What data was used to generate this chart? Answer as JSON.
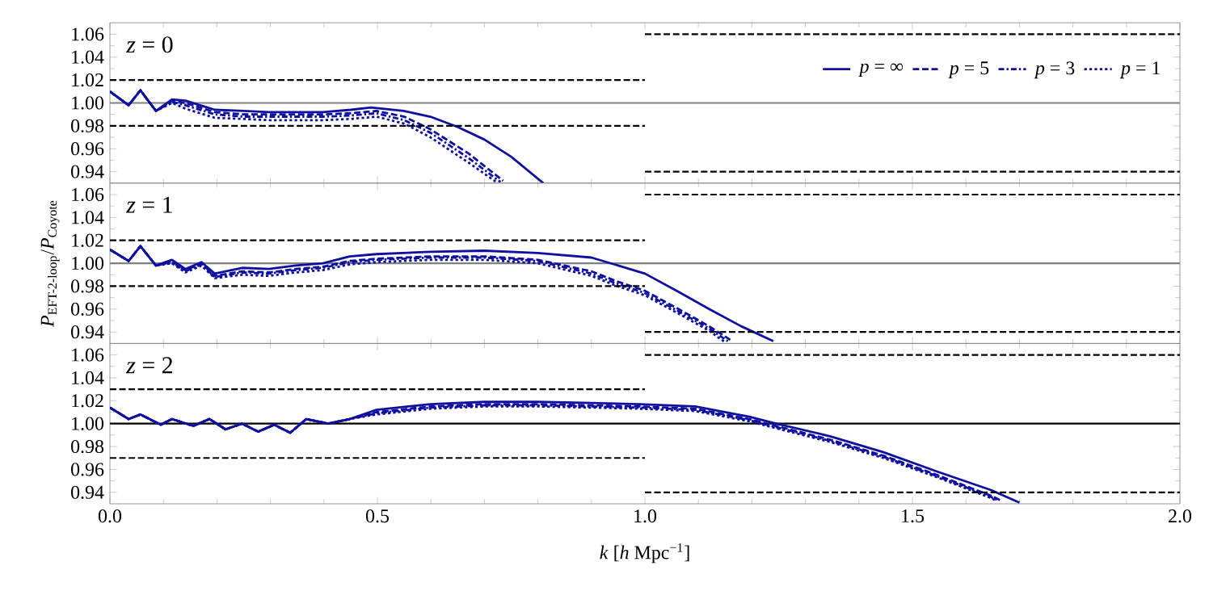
{
  "chart_data": [
    {
      "type": "line",
      "annotations": [
        "*z* = 0"
      ],
      "xlim": [
        0,
        2
      ],
      "ylim": [
        0.93,
        1.07
      ],
      "tick_labels": "y",
      "legend": "top right",
      "xticks": [
        {
          "value": 0,
          "label": null
        },
        {
          "value": 0.5,
          "label": null
        },
        {
          "value": 1,
          "label": null
        },
        {
          "value": 1.5,
          "label": null
        },
        {
          "value": 2,
          "label": null
        }
      ],
      "yticks": [
        {
          "value": 0.94,
          "label": "0.94"
        },
        {
          "value": 0.96,
          "label": "0.96"
        },
        {
          "value": 0.98,
          "label": "0.98"
        },
        {
          "value": 1,
          "label": "1.00"
        },
        {
          "value": 1.02,
          "label": "1.02"
        },
        {
          "value": 1.04,
          "label": "1.04"
        },
        {
          "value": 1.06,
          "label": "1.06"
        }
      ],
      "ref_lines": [
        {
          "axis": "y",
          "value": 1,
          "color": "#808080"
        }
      ],
      "series": [
        {
          "name": "*p* = ∞",
          "color": "#1010a0",
          "line_style": "solid",
          "x": [
            0,
            0.035,
            0.057,
            0.086,
            0.116,
            0.141,
            0.196,
            0.25,
            0.297,
            0.35,
            0.398,
            0.45,
            0.488,
            0.549,
            0.599,
            0.65,
            0.7,
            0.75,
            0.81
          ],
          "values": [
            1.01,
            0.998,
            1.011,
            0.993,
            1.003,
            1.002,
            0.994,
            0.993,
            0.992,
            0.992,
            0.992,
            0.994,
            0.996,
            0.993,
            0.988,
            0.979,
            0.968,
            0.953,
            0.93
          ]
        },
        {
          "name": "*p* = 5",
          "color": "#1010a0",
          "line_style": "dashed",
          "x": [
            0,
            0.035,
            0.057,
            0.086,
            0.116,
            0.141,
            0.196,
            0.25,
            0.297,
            0.35,
            0.398,
            0.45,
            0.498,
            0.55,
            0.599,
            0.67,
            0.735
          ],
          "values": [
            1.01,
            0.998,
            1.011,
            0.993,
            1.002,
            1.0,
            0.992,
            0.99,
            0.99,
            0.99,
            0.99,
            0.991,
            0.993,
            0.988,
            0.977,
            0.956,
            0.932
          ]
        },
        {
          "name": "*p* = 3",
          "color": "#1010a0",
          "line_style": "dashdot",
          "x": [
            0,
            0.035,
            0.057,
            0.086,
            0.116,
            0.141,
            0.196,
            0.25,
            0.297,
            0.35,
            0.398,
            0.45,
            0.498,
            0.55,
            0.599,
            0.67,
            0.73
          ],
          "values": [
            1.01,
            0.998,
            1.011,
            0.993,
            1.001,
            0.998,
            0.99,
            0.988,
            0.988,
            0.988,
            0.988,
            0.989,
            0.991,
            0.985,
            0.974,
            0.952,
            0.931
          ]
        },
        {
          "name": "*p* = 1",
          "color": "#1010a0",
          "line_style": "dotted",
          "x": [
            0,
            0.035,
            0.057,
            0.086,
            0.116,
            0.141,
            0.196,
            0.25,
            0.297,
            0.35,
            0.398,
            0.45,
            0.498,
            0.55,
            0.599,
            0.67,
            0.725
          ],
          "values": [
            1.01,
            0.998,
            1.011,
            0.993,
            1.0,
            0.995,
            0.987,
            0.986,
            0.985,
            0.985,
            0.985,
            0.986,
            0.988,
            0.982,
            0.97,
            0.948,
            0.93
          ]
        },
        {
          "color": "#000000",
          "line_style": "dashed",
          "x": [
            0,
            1
          ],
          "values": [
            1.02,
            1.02
          ]
        },
        {
          "color": "#000000",
          "line_style": "dashed",
          "x": [
            0,
            1
          ],
          "values": [
            0.98,
            0.98
          ]
        },
        {
          "color": "#000000",
          "line_style": "dashed",
          "x": [
            1,
            2
          ],
          "values": [
            1.06,
            1.06
          ]
        },
        {
          "color": "#000000",
          "line_style": "dashed",
          "x": [
            1,
            2
          ],
          "values": [
            0.94,
            0.94
          ]
        }
      ]
    },
    {
      "type": "line",
      "annotations": [
        "*z* = 1"
      ],
      "ylabel": "*P*$_{EFT-2-loop}$/*P*$_{Coyote}$",
      "xlim": [
        0,
        2
      ],
      "ylim": [
        0.93,
        1.07
      ],
      "tick_labels": "y",
      "xticks": [
        {
          "value": 0,
          "label": null
        },
        {
          "value": 0.5,
          "label": null
        },
        {
          "value": 1,
          "label": null
        },
        {
          "value": 1.5,
          "label": null
        },
        {
          "value": 2,
          "label": null
        }
      ],
      "yticks": [
        {
          "value": 0.94,
          "label": "0.94"
        },
        {
          "value": 0.96,
          "label": "0.96"
        },
        {
          "value": 0.98,
          "label": "0.98"
        },
        {
          "value": 1,
          "label": "1.00"
        },
        {
          "value": 1.02,
          "label": "1.02"
        },
        {
          "value": 1.04,
          "label": "1.04"
        },
        {
          "value": 1.06,
          "label": "1.06"
        }
      ],
      "ref_lines": [
        {
          "axis": "y",
          "value": 1,
          "color": "#808080"
        }
      ],
      "series": [
        {
          "color": "#1010a0",
          "line_style": "solid",
          "x": [
            0,
            0.035,
            0.057,
            0.086,
            0.116,
            0.141,
            0.171,
            0.196,
            0.247,
            0.297,
            0.347,
            0.398,
            0.448,
            0.498,
            0.599,
            0.7,
            0.8,
            0.9,
            0.943,
            1.0,
            1.063,
            1.12,
            1.18,
            1.24
          ],
          "values": [
            1.012,
            1.002,
            1.015,
            0.998,
            1.003,
            0.995,
            1.001,
            0.991,
            0.996,
            0.995,
            0.998,
            1.0,
            1.006,
            1.008,
            1.01,
            1.011,
            1.009,
            1.005,
            0.999,
            0.991,
            0.975,
            0.96,
            0.945,
            0.932
          ]
        },
        {
          "color": "#1010a0",
          "line_style": "dashed",
          "x": [
            0,
            0.035,
            0.057,
            0.086,
            0.116,
            0.141,
            0.171,
            0.196,
            0.247,
            0.297,
            0.347,
            0.398,
            0.448,
            0.498,
            0.599,
            0.7,
            0.8,
            0.9,
            0.943,
            1.0,
            1.063,
            1.12,
            1.16
          ],
          "values": [
            1.012,
            1.002,
            1.015,
            0.998,
            1.002,
            0.994,
            1.0,
            0.989,
            0.993,
            0.992,
            0.995,
            0.997,
            1.002,
            1.004,
            1.006,
            1.006,
            1.003,
            0.993,
            0.985,
            0.976,
            0.96,
            0.945,
            0.933
          ]
        },
        {
          "color": "#1010a0",
          "line_style": "dashdot",
          "x": [
            0,
            0.035,
            0.057,
            0.086,
            0.116,
            0.141,
            0.171,
            0.196,
            0.247,
            0.297,
            0.347,
            0.398,
            0.448,
            0.498,
            0.599,
            0.7,
            0.8,
            0.9,
            0.943,
            1.0,
            1.063,
            1.12,
            1.155
          ],
          "values": [
            1.012,
            1.002,
            1.015,
            0.998,
            1.001,
            0.993,
            0.999,
            0.988,
            0.992,
            0.991,
            0.994,
            0.996,
            1.001,
            1.003,
            1.005,
            1.005,
            1.002,
            0.991,
            0.983,
            0.974,
            0.958,
            0.943,
            0.932
          ]
        },
        {
          "color": "#1010a0",
          "line_style": "dotted",
          "x": [
            0,
            0.035,
            0.057,
            0.086,
            0.116,
            0.141,
            0.171,
            0.196,
            0.247,
            0.297,
            0.347,
            0.398,
            0.448,
            0.498,
            0.599,
            0.7,
            0.8,
            0.9,
            0.943,
            1.0,
            1.063,
            1.12,
            1.15
          ],
          "values": [
            1.012,
            1.002,
            1.015,
            0.998,
            1.0,
            0.992,
            0.998,
            0.987,
            0.99,
            0.989,
            0.992,
            0.994,
            0.999,
            1.001,
            1.003,
            1.003,
            1.0,
            0.989,
            0.981,
            0.972,
            0.956,
            0.941,
            0.931
          ]
        },
        {
          "color": "#000000",
          "line_style": "dashed",
          "x": [
            0,
            1
          ],
          "values": [
            1.02,
            1.02
          ]
        },
        {
          "color": "#000000",
          "line_style": "dashed",
          "x": [
            0,
            1
          ],
          "values": [
            0.98,
            0.98
          ]
        },
        {
          "color": "#000000",
          "line_style": "dashed",
          "x": [
            1,
            2
          ],
          "values": [
            1.06,
            1.06
          ]
        },
        {
          "color": "#000000",
          "line_style": "dashed",
          "x": [
            1,
            2
          ],
          "values": [
            0.94,
            0.94
          ]
        }
      ]
    },
    {
      "type": "line",
      "annotations": [
        "*z* = 2"
      ],
      "xlabel": "*k* [*h* Mpc$^{−1}$]",
      "xlim": [
        0,
        2
      ],
      "ylim": [
        0.93,
        1.07
      ],
      "xticks": [
        {
          "value": 0,
          "label": "0.0"
        },
        {
          "value": 0.5,
          "label": "0.5"
        },
        {
          "value": 1,
          "label": "1.0"
        },
        {
          "value": 1.5,
          "label": "1.5"
        },
        {
          "value": 2,
          "label": "2.0"
        }
      ],
      "yticks": [
        {
          "value": 0.94,
          "label": "0.94"
        },
        {
          "value": 0.96,
          "label": "0.96"
        },
        {
          "value": 0.98,
          "label": "0.98"
        },
        {
          "value": 1,
          "label": "1.00"
        },
        {
          "value": 1.02,
          "label": "1.02"
        },
        {
          "value": 1.04,
          "label": "1.04"
        },
        {
          "value": 1.06,
          "label": "1.06"
        }
      ],
      "ref_lines": [
        {
          "axis": "y",
          "value": 1,
          "color": "#000000"
        }
      ],
      "series": [
        {
          "color": "#1010a0",
          "line_style": "solid",
          "x": [
            0,
            0.035,
            0.057,
            0.095,
            0.116,
            0.156,
            0.186,
            0.216,
            0.247,
            0.277,
            0.307,
            0.337,
            0.367,
            0.408,
            0.448,
            0.498,
            0.599,
            0.7,
            0.8,
            0.9,
            0.99,
            1.094,
            1.195,
            1.245,
            1.346,
            1.446,
            1.547,
            1.647,
            1.7
          ],
          "values": [
            1.014,
            1.004,
            1.008,
            0.999,
            1.004,
            0.998,
            1.004,
            0.995,
            1.0,
            0.993,
            0.999,
            0.992,
            1.004,
            1.0,
            1.004,
            1.012,
            1.017,
            1.019,
            1.019,
            1.018,
            1.017,
            1.015,
            1.006,
            1.0,
            0.989,
            0.975,
            0.958,
            0.942,
            0.931
          ]
        },
        {
          "color": "#1010a0",
          "line_style": "dashed",
          "x": [
            0,
            0.035,
            0.057,
            0.095,
            0.116,
            0.156,
            0.186,
            0.216,
            0.247,
            0.277,
            0.307,
            0.337,
            0.367,
            0.408,
            0.448,
            0.498,
            0.599,
            0.7,
            0.8,
            0.9,
            0.99,
            1.094,
            1.195,
            1.245,
            1.346,
            1.446,
            1.547,
            1.647,
            1.665
          ],
          "values": [
            1.014,
            1.004,
            1.008,
            0.999,
            1.004,
            0.998,
            1.004,
            0.995,
            1.0,
            0.993,
            0.999,
            0.992,
            1.004,
            1.0,
            1.004,
            1.01,
            1.015,
            1.017,
            1.017,
            1.016,
            1.015,
            1.013,
            1.004,
            0.998,
            0.986,
            0.972,
            0.955,
            0.937,
            0.933
          ]
        },
        {
          "color": "#1010a0",
          "line_style": "dashdot",
          "x": [
            0,
            0.035,
            0.057,
            0.095,
            0.116,
            0.156,
            0.186,
            0.216,
            0.247,
            0.277,
            0.307,
            0.337,
            0.367,
            0.408,
            0.448,
            0.498,
            0.599,
            0.7,
            0.8,
            0.9,
            0.99,
            1.094,
            1.195,
            1.245,
            1.346,
            1.446,
            1.547,
            1.647,
            1.66
          ],
          "values": [
            1.014,
            1.004,
            1.008,
            0.999,
            1.004,
            0.998,
            1.004,
            0.995,
            1.0,
            0.993,
            0.999,
            0.992,
            1.004,
            1.0,
            1.004,
            1.009,
            1.014,
            1.016,
            1.016,
            1.015,
            1.014,
            1.012,
            1.003,
            0.997,
            0.985,
            0.971,
            0.954,
            0.936,
            0.933
          ]
        },
        {
          "color": "#1010a0",
          "line_style": "dotted",
          "x": [
            0,
            0.035,
            0.057,
            0.095,
            0.116,
            0.156,
            0.186,
            0.216,
            0.247,
            0.277,
            0.307,
            0.337,
            0.367,
            0.408,
            0.448,
            0.498,
            0.599,
            0.7,
            0.8,
            0.9,
            0.99,
            1.094,
            1.195,
            1.245,
            1.346,
            1.446,
            1.547,
            1.647,
            1.655
          ],
          "values": [
            1.014,
            1.004,
            1.008,
            0.999,
            1.004,
            0.998,
            1.004,
            0.995,
            1.0,
            0.993,
            0.999,
            0.992,
            1.004,
            1.0,
            1.004,
            1.008,
            1.013,
            1.015,
            1.015,
            1.014,
            1.013,
            1.011,
            1.002,
            0.996,
            0.984,
            0.97,
            0.953,
            0.935,
            0.933
          ]
        },
        {
          "color": "#000000",
          "line_style": "dashed",
          "x": [
            0,
            1
          ],
          "values": [
            1.03,
            1.03
          ]
        },
        {
          "color": "#000000",
          "line_style": "dashed",
          "x": [
            0,
            1
          ],
          "values": [
            0.97,
            0.97
          ]
        },
        {
          "color": "#000000",
          "line_style": "dashed",
          "x": [
            1,
            2
          ],
          "values": [
            1.06,
            1.06
          ]
        },
        {
          "color": "#000000",
          "line_style": "dashed",
          "x": [
            1,
            2
          ],
          "values": [
            0.94,
            0.94
          ]
        }
      ]
    }
  ]
}
